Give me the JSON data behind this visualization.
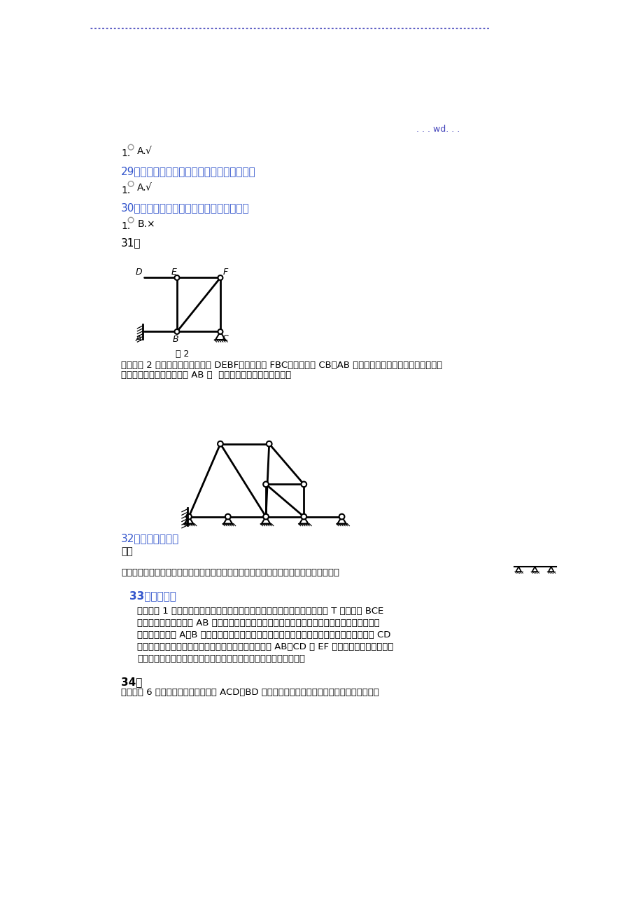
{
  "bg_color": "#ffffff",
  "dashed_color": "#4444bb",
  "wd_text": ". . . wd. . .",
  "q29_text": "29、用图乘法可以求等刺度直杆体系的位移。",
  "q30_text": "30、连接四个刚片的复铰相当于四个约束。",
  "q31_text": "31、",
  "fig2_caption": "图 2",
  "sol31_line1": "解：对图 2 所示体系有：去二元体 DEBF；去二元体 FBC；去二元体 CB；AB 杆件与地基刚接构成刚片；整个体系",
  "sol31_line2": "多余约束的几何不变体系。 AB 为  基本局部，其它为附属局部。",
  "q32_text": "32、几何组成分析",
  "sol32_header": "解：",
  "sol32_line": "依次去掉二元体剩下如以以列图的并排简支梁，故原体系为无多余约束的几何不变体系。",
  "q33_text": "33、体系分析",
  "sol33_lines": [
    "答：对图 1 所示体系进展几何组成分析时，可把地基作为一个刚片，当中的 T 字形局部 BCE",
    "作为一个刚片。左边的 AB 局部所为折线，但本身是一个刚片而且只用两个铰与其他局部相联，",
    "因此它实际上与 A、B 两铰连线上的一根链杆（如图中虚线所示）的作用一样。同理，右边的 CD",
    "局部也相当于一根链杆。这样，此体系便是两个刚片用 AB、CD 和 EF 三根链杆相联而组成，三",
    "杆不全平行也不交于一点，故为几何不变体系，而且没有多余约束。"
  ],
  "q34_text": "34、",
  "sol34_line": "答：对图 6 所示体系有：先去二元体 ACD；BD 杆件与地基之间用既不平行也不交于一点的三个"
}
